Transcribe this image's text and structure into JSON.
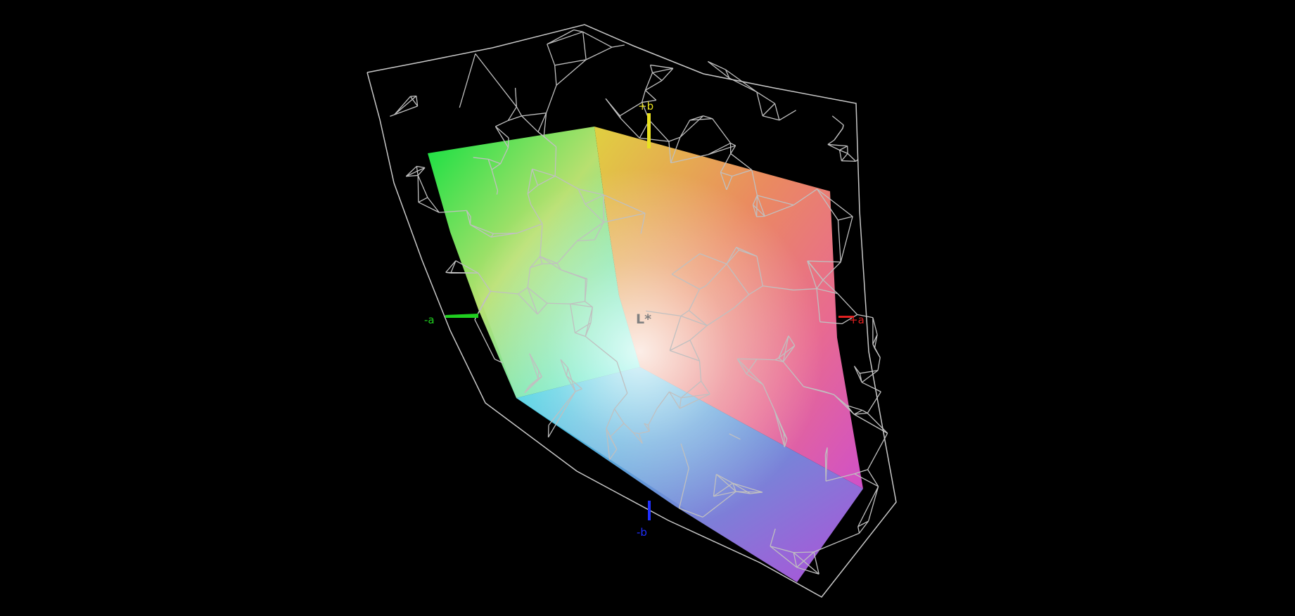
{
  "axes": {
    "plus_a": {
      "label": "+a",
      "color": "#ff2020"
    },
    "minus_a": {
      "label": "-a",
      "color": "#20e020"
    },
    "plus_b": {
      "label": "+b",
      "color": "#f0e020"
    },
    "minus_b": {
      "label": "-b",
      "color": "#2030ff"
    },
    "lightness": {
      "label": "L*",
      "color": "#808080"
    }
  },
  "colors": {
    "background": "#000000",
    "wireframe": "#c0c0c0"
  }
}
